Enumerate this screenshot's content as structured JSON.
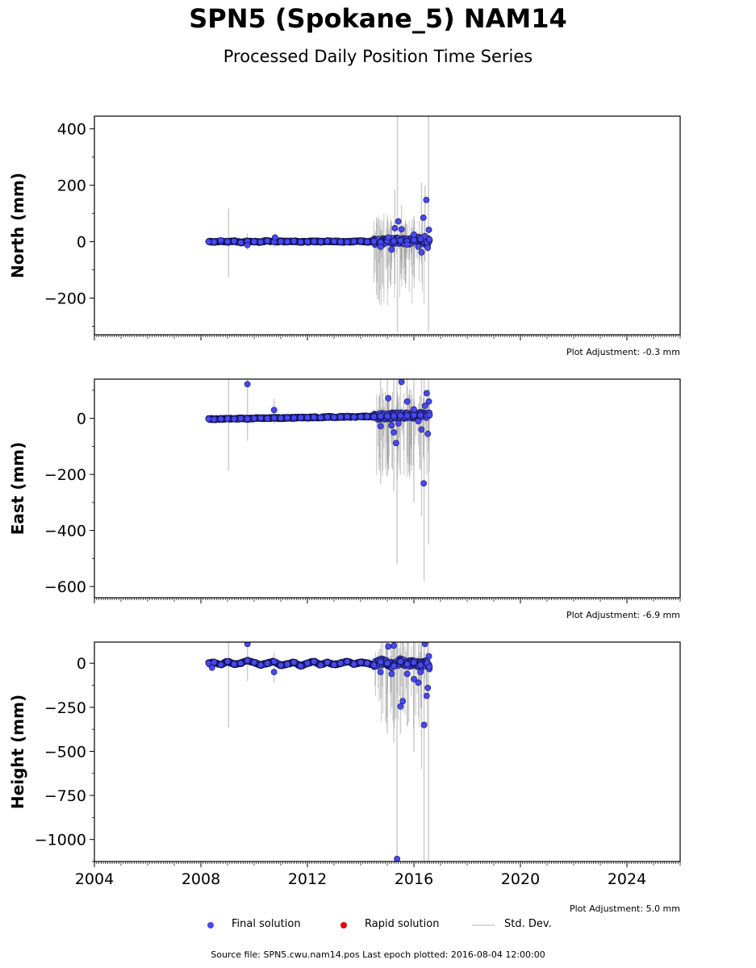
{
  "header": {
    "title": "SPN5 (Spokane_5) NAM14",
    "subtitle": "Processed Daily Position Time Series"
  },
  "footer": {
    "text": "Source file: SPN5.cwu.nam14.pos  Last epoch plotted: 2016-08-04 12:00:00"
  },
  "legend": {
    "final": "Final solution",
    "rapid": "Rapid solution",
    "stddev": "Std. Dev."
  },
  "colors": {
    "final_fill": "#4848f0",
    "final_edge": "#10104a",
    "rapid": "#e00000",
    "stddev": "#cccccc",
    "stddev_dark": "#8a8a8a"
  },
  "chart_data": [
    {
      "type": "scatter",
      "ylabel": "North (mm)",
      "xlim": [
        "2004-01-01",
        "2026-01-01"
      ],
      "ylim": [
        -330,
        445
      ],
      "yticks": [
        400,
        200,
        0,
        -200
      ],
      "ytick_labels": [
        "400",
        "200",
        "0",
        "−200"
      ],
      "adjustment": "Plot Adjustment: -0.3 mm",
      "series": [
        {
          "x": [
            "2008-04-15",
            "2008-07-01",
            "2008-10-01",
            "2009-01-01",
            "2009-04-01",
            "2009-07-01",
            "2009-10-01",
            "2010-01-01",
            "2010-04-01",
            "2010-07-01",
            "2010-10-01",
            "2011-01-01",
            "2011-04-01",
            "2011-07-01",
            "2011-10-01",
            "2012-01-01",
            "2012-04-01",
            "2012-07-01",
            "2012-10-01",
            "2013-01-01",
            "2013-04-01",
            "2013-07-01",
            "2013-10-01",
            "2014-01-01",
            "2014-04-01",
            "2014-07-01",
            "2014-10-01",
            "2015-01-01",
            "2015-04-01",
            "2015-07-01",
            "2015-10-01",
            "2016-01-01",
            "2016-04-01",
            "2016-07-01",
            "2016-08-04"
          ],
          "y": [
            0,
            -1,
            1,
            0,
            2,
            -3,
            1,
            0,
            -1,
            3,
            0,
            1,
            0,
            2,
            -1,
            0,
            1,
            0,
            2,
            1,
            0,
            -1,
            1,
            2,
            0,
            1,
            -2,
            3,
            2,
            4,
            1,
            6,
            10,
            -3,
            5
          ]
        },
        {
          "x": [
            "2008-10-01",
            "2009-10-01",
            "2010-10-15",
            "2014-10-01",
            "2015-01-15",
            "2015-03-01",
            "2015-04-15",
            "2015-06-01",
            "2015-07-15",
            "2015-10-01",
            "2016-01-01",
            "2016-03-01",
            "2016-04-15",
            "2016-05-10",
            "2016-06-01",
            "2016-06-20",
            "2016-07-10",
            "2016-07-25",
            "2016-08-01"
          ],
          "y": [
            5,
            -12,
            15,
            -18,
            15,
            -28,
            48,
            72,
            44,
            -10,
            25,
            -18,
            -38,
            85,
            20,
            148,
            -22,
            42,
            8
          ]
        }
      ],
      "errorbars": [
        {
          "x": "2009-01-15",
          "low": -125,
          "high": 118
        },
        {
          "x": "2009-10-01",
          "low": -30,
          "high": 30
        },
        {
          "x": "2010-10-01",
          "low": -20,
          "high": 20
        },
        {
          "x": "2014-10-01",
          "low": -40,
          "high": 40
        },
        {
          "x": "2015-01-01",
          "low": -90,
          "high": 80
        },
        {
          "x": "2015-03-01",
          "low": -70,
          "high": 70
        },
        {
          "x": "2015-04-15",
          "low": -150,
          "high": 185
        },
        {
          "x": "2015-05-20",
          "low": -320,
          "high": 445
        },
        {
          "x": "2015-07-15",
          "low": -60,
          "high": 130
        },
        {
          "x": "2015-10-01",
          "low": -60,
          "high": 60
        },
        {
          "x": "2016-01-01",
          "low": -80,
          "high": 90
        },
        {
          "x": "2016-04-15",
          "low": -60,
          "high": 210
        },
        {
          "x": "2016-06-01",
          "low": -70,
          "high": 200
        },
        {
          "x": "2016-07-20",
          "low": -320,
          "high": 445
        }
      ]
    },
    {
      "type": "scatter",
      "ylabel": "East (mm)",
      "xlim": [
        "2004-01-01",
        "2026-01-01"
      ],
      "ylim": [
        -640,
        140
      ],
      "yticks": [
        0,
        -200,
        -400,
        -600
      ],
      "ytick_labels": [
        "0",
        "−200",
        "−400",
        "−600"
      ],
      "adjustment": "Plot Adjustment: -6.9 mm",
      "series": [
        {
          "x": [
            "2008-04-15",
            "2008-07-01",
            "2008-10-01",
            "2009-01-01",
            "2009-04-01",
            "2009-07-01",
            "2009-10-01",
            "2010-01-01",
            "2010-04-01",
            "2010-07-01",
            "2010-10-01",
            "2011-01-01",
            "2011-04-01",
            "2011-07-01",
            "2011-10-01",
            "2012-01-01",
            "2012-04-01",
            "2012-07-01",
            "2012-10-01",
            "2013-01-01",
            "2013-04-01",
            "2013-07-01",
            "2013-10-01",
            "2014-01-01",
            "2014-04-01",
            "2014-07-01",
            "2014-10-01",
            "2015-01-01",
            "2015-04-01",
            "2015-07-01",
            "2015-10-01",
            "2016-01-01",
            "2016-04-01",
            "2016-07-01",
            "2016-08-04"
          ],
          "y": [
            -2,
            -3,
            -2,
            -1,
            -2,
            0,
            -1,
            0,
            1,
            0,
            2,
            1,
            2,
            2,
            3,
            3,
            4,
            3,
            5,
            4,
            5,
            6,
            5,
            6,
            7,
            6,
            8,
            8,
            9,
            10,
            10,
            11,
            12,
            10,
            12
          ]
        },
        {
          "x": [
            "2009-10-01",
            "2010-10-01",
            "2014-10-01",
            "2015-01-15",
            "2015-03-01",
            "2015-04-01",
            "2015-05-01",
            "2015-06-01",
            "2015-07-15",
            "2015-10-01",
            "2016-01-01",
            "2016-03-01",
            "2016-04-15",
            "2016-05-15",
            "2016-06-01",
            "2016-06-25",
            "2016-07-10",
            "2016-07-25"
          ],
          "y": [
            122,
            30,
            -28,
            72,
            -25,
            -50,
            -88,
            -18,
            130,
            60,
            32,
            -10,
            -40,
            -232,
            45,
            90,
            -55,
            60
          ]
        }
      ],
      "errorbars": [
        {
          "x": "2009-01-15",
          "low": -185,
          "high": 140
        },
        {
          "x": "2009-10-01",
          "low": -80,
          "high": 140
        },
        {
          "x": "2010-10-01",
          "low": -20,
          "high": 70
        },
        {
          "x": "2014-10-01",
          "low": -235,
          "high": 140
        },
        {
          "x": "2015-01-01",
          "low": -150,
          "high": 140
        },
        {
          "x": "2015-04-01",
          "low": -260,
          "high": 140
        },
        {
          "x": "2015-05-15",
          "low": -520,
          "high": 140
        },
        {
          "x": "2015-07-01",
          "low": -200,
          "high": 140
        },
        {
          "x": "2015-10-01",
          "low": -160,
          "high": 140
        },
        {
          "x": "2016-01-01",
          "low": -300,
          "high": 140
        },
        {
          "x": "2016-04-15",
          "low": -350,
          "high": 140
        },
        {
          "x": "2016-05-20",
          "low": -580,
          "high": 140
        },
        {
          "x": "2016-07-20",
          "low": -450,
          "high": 140
        }
      ]
    },
    {
      "type": "scatter",
      "ylabel": "Height (mm)",
      "xlim": [
        "2004-01-01",
        "2026-01-01"
      ],
      "ylim": [
        -1125,
        120
      ],
      "yticks": [
        0,
        -250,
        -500,
        -750,
        -1000
      ],
      "ytick_labels": [
        "0",
        "−250",
        "−500",
        "−750",
        "−1000"
      ],
      "xticks": [
        "2004-01-01",
        "2008-01-01",
        "2012-01-01",
        "2016-01-01",
        "2020-01-01",
        "2024-01-01"
      ],
      "xtick_labels": [
        "2004",
        "2008",
        "2012",
        "2016",
        "2020",
        "2024"
      ],
      "adjustment": "Plot Adjustment: 5.0 mm",
      "series": [
        {
          "x": [
            "2008-04-15",
            "2008-07-01",
            "2008-10-01",
            "2009-01-01",
            "2009-04-01",
            "2009-07-01",
            "2009-10-01",
            "2010-01-01",
            "2010-04-01",
            "2010-07-01",
            "2010-10-01",
            "2011-01-01",
            "2011-04-01",
            "2011-07-01",
            "2011-10-01",
            "2012-01-01",
            "2012-04-01",
            "2012-07-01",
            "2012-10-01",
            "2013-01-01",
            "2013-04-01",
            "2013-07-01",
            "2013-10-01",
            "2014-01-01",
            "2014-04-01",
            "2014-07-01",
            "2014-10-01",
            "2015-01-01",
            "2015-04-01",
            "2015-07-01",
            "2015-10-01",
            "2016-01-01",
            "2016-04-01",
            "2016-07-01",
            "2016-08-04"
          ],
          "y": [
            0,
            5,
            -8,
            10,
            -5,
            0,
            15,
            5,
            -10,
            0,
            10,
            -12,
            -5,
            5,
            -15,
            0,
            10,
            -10,
            5,
            -8,
            0,
            10,
            -5,
            5,
            0,
            -10,
            8,
            0,
            -15,
            10,
            -5,
            5,
            -10,
            0,
            -20
          ]
        },
        {
          "x": [
            "2008-06-01",
            "2009-10-01",
            "2010-10-01",
            "2014-10-01",
            "2015-01-15",
            "2015-03-01",
            "2015-04-01",
            "2015-05-15",
            "2015-07-01",
            "2015-08-01",
            "2015-10-01",
            "2016-01-01",
            "2016-03-01",
            "2016-04-01",
            "2016-05-20",
            "2016-06-01",
            "2016-06-25",
            "2016-07-10",
            "2016-07-25",
            "2016-08-01"
          ],
          "y": [
            -25,
            110,
            -50,
            -50,
            95,
            -60,
            100,
            -1110,
            -245,
            -215,
            -60,
            -90,
            -110,
            -50,
            -350,
            110,
            -185,
            -140,
            40,
            -20
          ]
        }
      ],
      "errorbars": [
        {
          "x": "2009-01-15",
          "low": -365,
          "high": 120
        },
        {
          "x": "2009-10-01",
          "low": -100,
          "high": 120
        },
        {
          "x": "2010-10-01",
          "low": -110,
          "high": 60
        },
        {
          "x": "2014-10-01",
          "low": -200,
          "high": 80
        },
        {
          "x": "2015-01-01",
          "low": -400,
          "high": 120
        },
        {
          "x": "2015-04-01",
          "low": -450,
          "high": 120
        },
        {
          "x": "2015-05-15",
          "low": -1125,
          "high": 120
        },
        {
          "x": "2015-07-01",
          "low": -400,
          "high": 120
        },
        {
          "x": "2015-10-01",
          "low": -350,
          "high": 120
        },
        {
          "x": "2016-01-01",
          "low": -500,
          "high": 120
        },
        {
          "x": "2016-04-15",
          "low": -600,
          "high": 120
        },
        {
          "x": "2016-05-20",
          "low": -1125,
          "high": 120
        },
        {
          "x": "2016-07-20",
          "low": -1125,
          "high": 120
        }
      ]
    }
  ]
}
